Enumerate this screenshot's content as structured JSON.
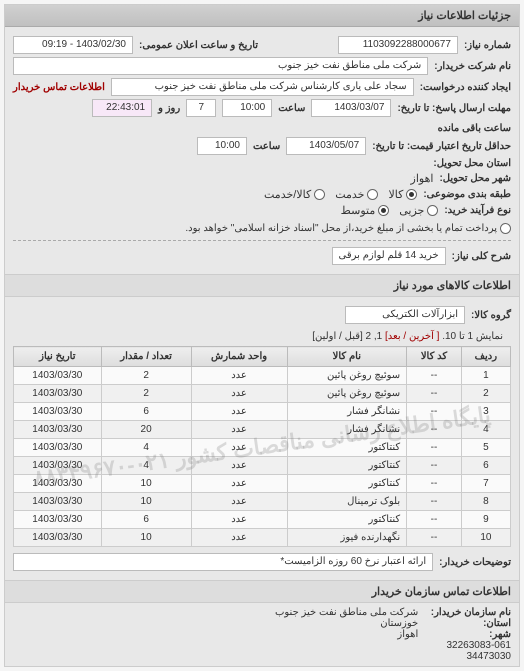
{
  "panel1": {
    "title": "جزئیات اطلاعات نیاز",
    "need_no_label": "شماره نیاز:",
    "need_no": "1103092288000677",
    "announce_label": "تاریخ و ساعت اعلان عمومی:",
    "announce_value": "1403/02/30 - 09:19",
    "buyer_name_label": "نام شرکت خریدار:",
    "buyer_name": "شرکت ملی مناطق نفت خیز جنوب",
    "requester_label": "ایجاد کننده درخواست:",
    "requester": "سجاد علی یاری کارشناس شرکت ملی مناطق نفت خیز جنوب",
    "contact_label": "اطلاعات تماس خریدار",
    "deadline_send_label": "مهلت ارسال پاسخ: تا تاریخ:",
    "deadline_send_date": "1403/03/07",
    "time_label": "ساعت",
    "deadline_send_time": "10:00",
    "days_remaining": "7",
    "days_label": "روز و",
    "time_remaining": "22:43:01",
    "remain_label": "ساعت باقی مانده",
    "valid_until_label": "حداقل تاریخ اعتبار قیمت: تا تاریخ:",
    "valid_until_date": "1403/05/07",
    "valid_until_time": "10:00",
    "province_label": "استان محل تحویل:",
    "city_label": "شهر محل تحویل:",
    "city": "اهواز",
    "category_label": "طبقه بندی موضوعی:",
    "cat_options": [
      "کالا",
      "خدمت",
      "کالا/خدمت"
    ],
    "cat_selected": 0,
    "process_type_label": "نوع فرآیند خرید:",
    "proc_options": [
      "جزیی",
      "متوسط"
    ],
    "proc_selected": 1,
    "proc_note": "پرداخت تمام یا بخشی از مبلغ خرید،از محل \"اسناد خزانه اسلامی\" خواهد بود.",
    "summary_label": "شرح کلی نیاز:",
    "summary": "خرید 14 قلم لوازم برقی"
  },
  "goods": {
    "title": "اطلاعات کالاهای مورد نیاز",
    "group_label": "گروه کالا:",
    "group_value": "ابزارآلات الکتریکی",
    "pager_prefix": "نمایش 1 تا 10.",
    "pager_last": "[ آخرین",
    "pager_next": "/ بعد]",
    "pager_pages": "1, 2",
    "pager_suffix": "[قبل / اولین]",
    "columns": [
      "ردیف",
      "کد کالا",
      "نام کالا",
      "واحد شمارش",
      "تعداد / مقدار",
      "تاریخ نیاز"
    ],
    "rows": [
      {
        "n": "1",
        "code": "--",
        "name": "سوئیچ روغن پائین",
        "unit": "عدد",
        "qty": "2",
        "date": "1403/03/30"
      },
      {
        "n": "2",
        "code": "--",
        "name": "سوئیچ روغن پائین",
        "unit": "عدد",
        "qty": "2",
        "date": "1403/03/30"
      },
      {
        "n": "3",
        "code": "--",
        "name": "نشانگر فشار",
        "unit": "عدد",
        "qty": "6",
        "date": "1403/03/30"
      },
      {
        "n": "4",
        "code": "--",
        "name": "نشانگر فشار",
        "unit": "عدد",
        "qty": "20",
        "date": "1403/03/30"
      },
      {
        "n": "5",
        "code": "--",
        "name": "کنتاکتور",
        "unit": "عدد",
        "qty": "4",
        "date": "1403/03/30"
      },
      {
        "n": "6",
        "code": "--",
        "name": "کنتاکتور",
        "unit": "عدد",
        "qty": "4",
        "date": "1403/03/30"
      },
      {
        "n": "7",
        "code": "--",
        "name": "کنتاکتور",
        "unit": "عدد",
        "qty": "10",
        "date": "1403/03/30"
      },
      {
        "n": "8",
        "code": "--",
        "name": "بلوک ترمینال",
        "unit": "عدد",
        "qty": "10",
        "date": "1403/03/30"
      },
      {
        "n": "9",
        "code": "--",
        "name": "کنتاکتور",
        "unit": "عدد",
        "qty": "6",
        "date": "1403/03/30"
      },
      {
        "n": "10",
        "code": "--",
        "name": "نگهدارنده فیوز",
        "unit": "عدد",
        "qty": "10",
        "date": "1403/03/30"
      }
    ],
    "watermark": "پایگاه اطلاع رسانی مناقصات کشور\n۰۲۱-۸۸۳۴۹۶۷۰",
    "desc_label": "توضیحات خریدار:",
    "desc_value": "ارائه اعتبار نرخ 60 روزه الزامیست*"
  },
  "footer": {
    "title": "اطلاعات تماس سازمان خریدار",
    "org_label": "نام سازمان خریدار:",
    "org": "شرکت ملی مناطق نفت خیز جنوب",
    "province_label": "استان:",
    "province": "خوزستان",
    "city_label": "شهر:",
    "city": "اهواز",
    "phone": "32263083-061",
    "code": "34473030"
  }
}
